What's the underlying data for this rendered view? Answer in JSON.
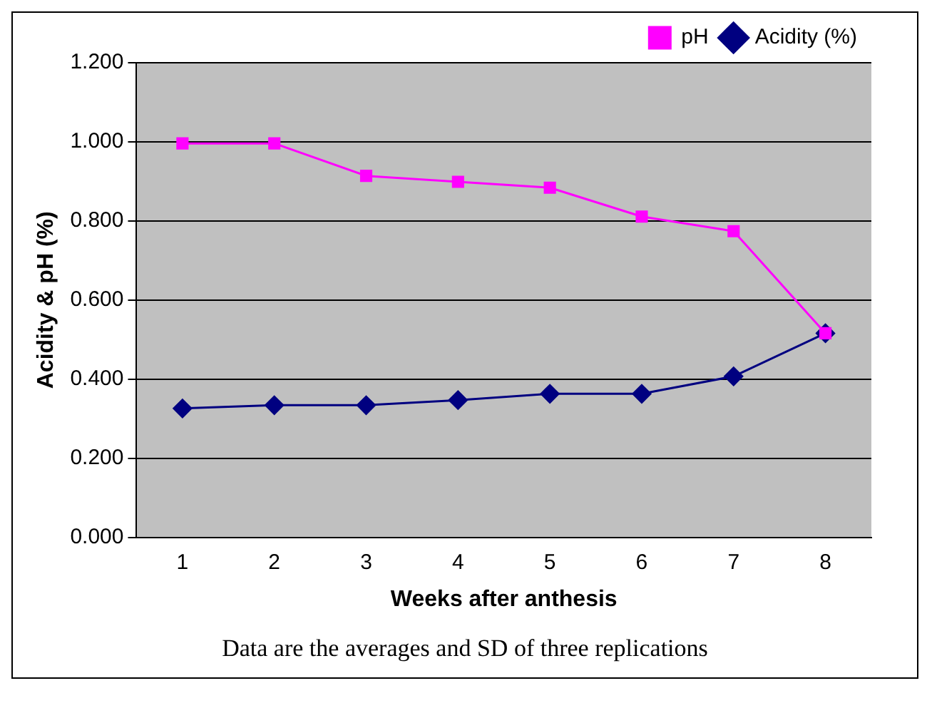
{
  "chart_data": {
    "type": "line",
    "xlabel": "Weeks after anthesis",
    "ylabel": "Acidity & pH (%)",
    "categories": [
      "1",
      "2",
      "3",
      "4",
      "5",
      "6",
      "7",
      "8"
    ],
    "series": [
      {
        "name": "Acidity (%)",
        "color": "#000080",
        "marker": "diamond",
        "values": [
          0.326,
          0.334,
          0.334,
          0.347,
          0.363,
          0.363,
          0.407,
          0.516
        ]
      },
      {
        "name": "pH",
        "color": "#ff00ff",
        "marker": "square",
        "values": [
          0.996,
          0.996,
          0.914,
          0.899,
          0.884,
          0.811,
          0.774,
          0.516
        ]
      }
    ],
    "ylim": [
      0,
      1.2
    ],
    "yticks": [
      {
        "value": 0,
        "label": "0.000"
      },
      {
        "value": 0.2,
        "label": "0.200"
      },
      {
        "value": 0.4,
        "label": "0.400"
      },
      {
        "value": 0.6,
        "label": "0.600"
      },
      {
        "value": 0.8,
        "label": "0.800"
      },
      {
        "value": 1,
        "label": "1.000"
      },
      {
        "value": 1.2,
        "label": "1.200"
      }
    ],
    "grid": "y",
    "legend": "top right",
    "annotations": [
      "Data are the averages and SD of three replications"
    ]
  }
}
